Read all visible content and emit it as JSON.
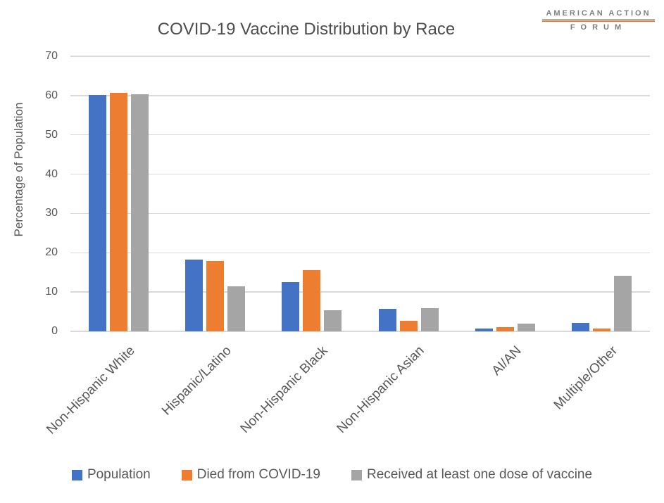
{
  "logo": {
    "line1": "AMERICAN ACTION",
    "line2": "FORUM"
  },
  "chart_data": {
    "type": "bar",
    "title": "COVID-19 Vaccine Distribution by Race",
    "xlabel": "",
    "ylabel": "Percentage of Population",
    "ylim": [
      0,
      70
    ],
    "yticks": [
      0,
      10,
      20,
      30,
      40,
      50,
      60,
      70
    ],
    "grid": true,
    "legend_position": "bottom",
    "categories": [
      "Non-Hispanic White",
      "Hispanic/Latino",
      "Non-Hispanic Black",
      "Non-Hispanic Asian",
      "AI/AN",
      "Multiple/Other"
    ],
    "series": [
      {
        "name": "Population",
        "color": "#4472C4",
        "values": [
          60.1,
          18.2,
          12.5,
          5.7,
          0.7,
          2.2
        ]
      },
      {
        "name": "Died from COVID-19",
        "color": "#ED7D31",
        "values": [
          60.7,
          17.9,
          15.5,
          2.7,
          1.1,
          0.7
        ]
      },
      {
        "name": "Received at least one dose of vaccine",
        "color": "#A5A5A5",
        "values": [
          60.4,
          11.4,
          5.3,
          5.9,
          2.0,
          14.2
        ]
      }
    ]
  }
}
